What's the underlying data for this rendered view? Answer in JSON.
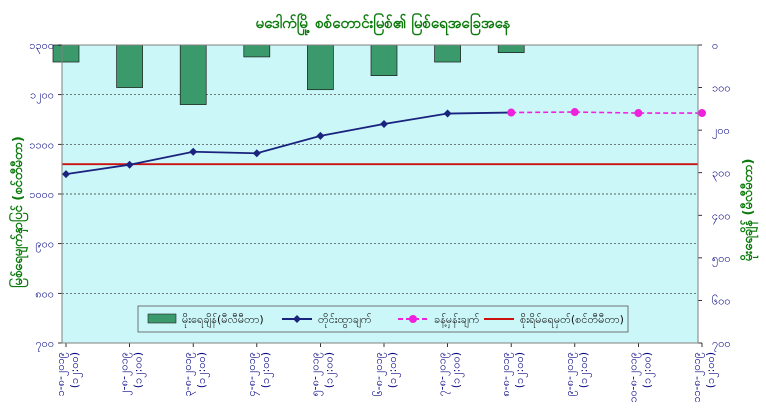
{
  "chart_data": {
    "type": "bar+line",
    "title": "မဒေါက်မြို့ စစ်တောင်းမြစ်၏ မြစ်ရေအခြေအနေ",
    "ylabel_left": "မြစ်ရေမျက်နှာပြင် (စင်တီမီတာ)",
    "ylabel_right": "မိုးရေချိန် (မီလီမီတာ)",
    "y_left_ticks": [
      "၇၀၀",
      "၈၀၀",
      "၉၀၀",
      "၁၀၀၀",
      "၁၁၀၀",
      "၁၂၀၀",
      "၁၃၀၀"
    ],
    "y_right_ticks": [
      "၀",
      "၁၀၀",
      "၂၀၀",
      "၃၀၀",
      "၄၀၀",
      "၅၀၀",
      "၆၀၀",
      "၇၀၀"
    ],
    "y_left_range": [
      700,
      1300
    ],
    "y_right_range": [
      0,
      700
    ],
    "categories": [
      [
        "၁-၈-၂၀၁၉",
        "(၁၂:၀၀)"
      ],
      [
        "၂-၈-၂၀၁၉",
        "(၁၂:၀၀)"
      ],
      [
        "၃-၈-၂၀၁၉",
        "(၁၂:၀၀)"
      ],
      [
        "၄-၈-၂၀၁၉",
        "(၁၂:၀၀)"
      ],
      [
        "၅-၈-၂၀၁၉",
        "(၁၂:၀၀)"
      ],
      [
        "၆-၈-၂၀၁၉",
        "(၁၂:၀၀)"
      ],
      [
        "၇-၈-၂၀၁၉",
        "(၁၂:၀၀)"
      ],
      [
        "၈-၈-၂၀၁၉",
        "(၁၂:၀၀)"
      ],
      [
        "၉-၈-၂၀၁၉",
        "(၁၂:၀၀)"
      ],
      [
        "၁၀-၈-၂၀၁၉",
        "(၁၂:၀၀)"
      ],
      [
        "၁၁-၈-၂၀၁၉",
        "(၁၂:၀၀)"
      ]
    ],
    "series": [
      {
        "name": "မိုးရေချိန်(မီလီမီတာ)",
        "kind": "bar",
        "axis": "right",
        "color": "#3a9a6c",
        "values": [
          40,
          100,
          140,
          28,
          105,
          72,
          40,
          18,
          null,
          null,
          null
        ]
      },
      {
        "name": "တိုင်းထွာချက်",
        "kind": "line",
        "axis": "left",
        "color": "#1a237e",
        "values": [
          1040,
          1059,
          1085,
          1082,
          1117,
          1141,
          1162,
          1164,
          null,
          null,
          null
        ]
      },
      {
        "name": "ခန့်မှန်းချက်",
        "kind": "dashed-line",
        "axis": "left",
        "color": "#ee22dd",
        "values": [
          null,
          null,
          null,
          null,
          null,
          null,
          null,
          1164,
          1165,
          1163,
          1163
        ]
      },
      {
        "name": "စိုးရိမ်ရေမှတ်(စင်တီမီတာ)",
        "kind": "hline",
        "axis": "left",
        "color": "#cc1111",
        "value": 1060
      }
    ],
    "grid": true,
    "legend": "bottom-inside"
  }
}
